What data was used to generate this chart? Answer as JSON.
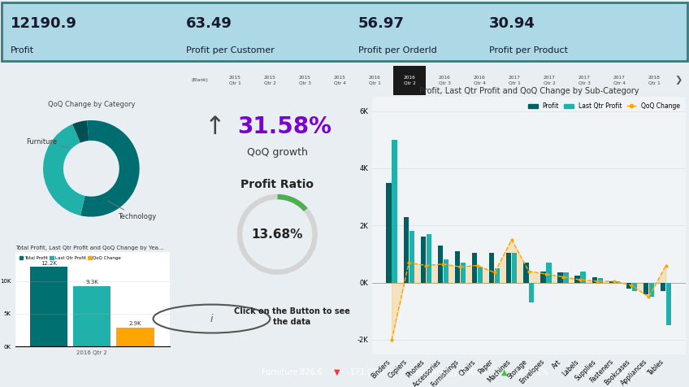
{
  "kpi_values": [
    "12190.9",
    "63.49",
    "56.97",
    "30.94"
  ],
  "kpi_labels": [
    "Profit",
    "Profit per Customer",
    "Profit per OrderId",
    "Profit per Product"
  ],
  "header_bg": "#add8e6",
  "header_border": "#3a7a7a",
  "donut_title": "QoQ Change by Category",
  "donut_sizes": [
    55,
    40,
    5
  ],
  "donut_colors": [
    "#006d70",
    "#20b2aa",
    "#004f52"
  ],
  "bar_small_title": "Total Profit, Last Qtr Profit and QoQ Change by Yea...",
  "bar_small_labels": [
    "Total Profit",
    "Last Qtr Profit",
    "QoQ Change"
  ],
  "bar_small_colors": [
    "#007070",
    "#20b2aa",
    "#ffa500"
  ],
  "bar_small_total": 12200,
  "bar_small_last": 9300,
  "bar_small_qoq": 2900,
  "bar_small_year": "2016 Qtr 2",
  "qoq_growth": "31.58%",
  "profit_ratio": "13.68%",
  "profit_ratio_value": 13.68,
  "timeline_items": [
    "(Blank)",
    "2015\nQtr 1",
    "2015\nQtr 2",
    "2015\nQtr 3",
    "2015\nQtr 4",
    "2016\nQtr 1",
    "2016\nQtr 2",
    "2016\nQtr 3",
    "2016\nQtr 4",
    "2017\nQtr 1",
    "2017\nQtr 2",
    "2017\nQtr 3",
    "2017\nQtr 4",
    "2018\nQtr 1"
  ],
  "selected_timeline": 6,
  "sub_categories": [
    "Binders",
    "Copiers",
    "Phones",
    "Accessories",
    "Furnishings",
    "Chairs",
    "Paper",
    "Machines",
    "Storage",
    "Envelopes",
    "Art",
    "Labels",
    "Supplies",
    "Fasteners",
    "Bookcases",
    "Appliances",
    "Tables"
  ],
  "profit_vals": [
    3500,
    2300,
    1600,
    1300,
    1100,
    1050,
    1050,
    1050,
    700,
    400,
    350,
    250,
    200,
    50,
    -200,
    -400,
    -300
  ],
  "last_qtr_vals": [
    5000,
    1800,
    1700,
    800,
    700,
    550,
    500,
    1050,
    -700,
    700,
    350,
    400,
    150,
    50,
    -300,
    -500,
    -1500
  ],
  "qoq_vals": [
    -2000,
    700,
    600,
    650,
    550,
    600,
    350,
    1500,
    400,
    300,
    200,
    100,
    50,
    50,
    -100,
    -500,
    600
  ],
  "chart_title": "Profit, Last Qtr Profit and QoQ Change by Sub-Category",
  "profit_color": "#005f60",
  "last_qtr_color": "#20b2aa",
  "qoq_color": "#ffa500",
  "ticker_bg": "#1a1a1a",
  "ticker_furniture_color": "#ff3333",
  "ticker_tech_color": "#33cc33",
  "bg_color": "#e8eef2"
}
